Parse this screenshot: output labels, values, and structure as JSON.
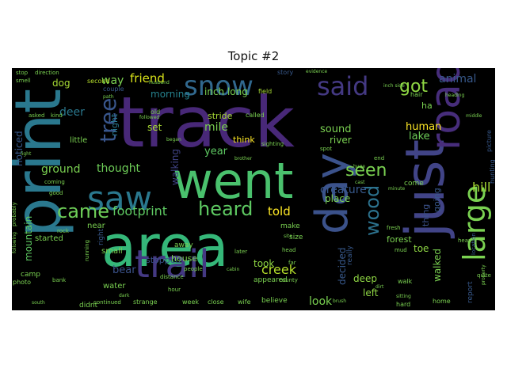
{
  "title": "Topic #2",
  "background": "#000000",
  "palette": [
    "#440154",
    "#3b528b",
    "#21918c",
    "#5ec962",
    "#fde725"
  ],
  "words": [
    {
      "text": "track",
      "color": "#482878"
    },
    {
      "text": "went",
      "color": "#4ac16d"
    },
    {
      "text": "area",
      "color": "#35b779"
    },
    {
      "text": "print",
      "color": "#2a788e"
    },
    {
      "text": "just",
      "color": "#414487"
    },
    {
      "text": "day",
      "color": "#3b528b"
    },
    {
      "text": "road",
      "color": "#472d7b"
    },
    {
      "text": "saw",
      "color": "#2a788e"
    },
    {
      "text": "trail",
      "color": "#443983"
    },
    {
      "text": "large",
      "color": "#7ad151"
    },
    {
      "text": "snow",
      "color": "#31688e"
    },
    {
      "text": "said",
      "color": "#443983"
    },
    {
      "text": "got",
      "color": "#8fd744"
    },
    {
      "text": "heard",
      "color": "#5ec962"
    },
    {
      "text": "came",
      "color": "#6ece58"
    },
    {
      "text": "seen",
      "color": "#7ad151"
    },
    {
      "text": "wood",
      "color": "#2c728e"
    },
    {
      "text": "tree",
      "color": "#39568c"
    },
    {
      "text": "footprint",
      "color": "#5ec962"
    },
    {
      "text": "creek",
      "color": "#b5de2b"
    },
    {
      "text": "friend",
      "color": "#d8e219"
    },
    {
      "text": "way",
      "color": "#7ad151"
    },
    {
      "text": "deer",
      "color": "#2a788e"
    },
    {
      "text": "mile",
      "color": "#7ad151"
    },
    {
      "text": "animal",
      "color": "#38598c"
    },
    {
      "text": "hill",
      "color": "#a8db34"
    },
    {
      "text": "told",
      "color": "#fde725"
    },
    {
      "text": "thought",
      "color": "#6ece58"
    },
    {
      "text": "ground",
      "color": "#7ad151"
    },
    {
      "text": "creature",
      "color": "#38598c"
    },
    {
      "text": "mountain",
      "color": "#5ec962"
    },
    {
      "text": "bear",
      "color": "#3b528b"
    },
    {
      "text": "look",
      "color": "#7ad151"
    },
    {
      "text": "human",
      "color": "#fde725"
    },
    {
      "text": "lake",
      "color": "#6ece58"
    },
    {
      "text": "sound",
      "color": "#7ad151"
    },
    {
      "text": "river",
      "color": "#7ad151"
    },
    {
      "text": "year",
      "color": "#5ec962"
    },
    {
      "text": "night",
      "color": "#2a788e"
    },
    {
      "text": "walking",
      "color": "#414487"
    },
    {
      "text": "going",
      "color": "#38598c"
    },
    {
      "text": "place",
      "color": "#7ad151"
    },
    {
      "text": "noticed",
      "color": "#38598c"
    },
    {
      "text": "morning",
      "color": "#26828e"
    },
    {
      "text": "inch long",
      "color": "#7ad151"
    },
    {
      "text": "set",
      "color": "#a8db34"
    },
    {
      "text": "dog",
      "color": "#a8db34"
    },
    {
      "text": "stopped",
      "color": "#3b528b"
    },
    {
      "text": "took",
      "color": "#8fd744"
    },
    {
      "text": "walked",
      "color": "#7ad151"
    },
    {
      "text": "thing",
      "color": "#3b528b"
    },
    {
      "text": "decided",
      "color": "#38598c"
    },
    {
      "text": "deep",
      "color": "#8fd744"
    },
    {
      "text": "left",
      "color": "#8fd744"
    },
    {
      "text": "toe",
      "color": "#8fd744"
    },
    {
      "text": "forest",
      "color": "#7ad151"
    },
    {
      "text": "house",
      "color": "#7ad151"
    },
    {
      "text": "think",
      "color": "#fde725"
    },
    {
      "text": "stride",
      "color": "#a8db34"
    },
    {
      "text": "ha",
      "color": "#7ad151"
    },
    {
      "text": "little",
      "color": "#7ad151"
    },
    {
      "text": "small",
      "color": "#7ad151"
    },
    {
      "text": "right",
      "color": "#38598c"
    },
    {
      "text": "near",
      "color": "#7ad151"
    },
    {
      "text": "started",
      "color": "#7ad151"
    },
    {
      "text": "water",
      "color": "#7ad151"
    },
    {
      "text": "didnt",
      "color": "#7ad151"
    },
    {
      "text": "come",
      "color": "#7ad151"
    },
    {
      "text": "size",
      "color": "#7ad151"
    },
    {
      "text": "make",
      "color": "#7ad151"
    },
    {
      "text": "appeared",
      "color": "#7ad151"
    },
    {
      "text": "believe",
      "color": "#7ad151"
    },
    {
      "text": "report",
      "color": "#38598c"
    },
    {
      "text": "really",
      "color": "#38598c"
    },
    {
      "text": "away",
      "color": "#7ad151"
    },
    {
      "text": "camp",
      "color": "#7ad151"
    },
    {
      "text": "photo",
      "color": "#7ad151"
    },
    {
      "text": "second",
      "color": "#b5de2b"
    },
    {
      "text": "couple",
      "color": "#38598c"
    },
    {
      "text": "old",
      "color": "#7ad151"
    },
    {
      "text": "called",
      "color": "#7ad151"
    },
    {
      "text": "field",
      "color": "#a8db34"
    },
    {
      "text": "story",
      "color": "#38598c"
    },
    {
      "text": "hair",
      "color": "#7ad151"
    },
    {
      "text": "hunting",
      "color": "#38598c"
    },
    {
      "text": "picture",
      "color": "#38598c"
    },
    {
      "text": "location",
      "color": "#38598c"
    },
    {
      "text": "rock",
      "color": "#7ad151"
    },
    {
      "text": "good",
      "color": "#7ad151"
    },
    {
      "text": "close",
      "color": "#7ad151"
    },
    {
      "text": "wife",
      "color": "#7ad151"
    },
    {
      "text": "week",
      "color": "#7ad151"
    },
    {
      "text": "strange",
      "color": "#7ad151"
    },
    {
      "text": "hour",
      "color": "#7ad151"
    },
    {
      "text": "walk",
      "color": "#7ad151"
    },
    {
      "text": "hard",
      "color": "#7ad151"
    },
    {
      "text": "home",
      "color": "#7ad151"
    },
    {
      "text": "head",
      "color": "#7ad151"
    },
    {
      "text": "far",
      "color": "#7ad151"
    },
    {
      "text": "later",
      "color": "#7ad151"
    },
    {
      "text": "people",
      "color": "#7ad151"
    },
    {
      "text": "running",
      "color": "#7ad151"
    },
    {
      "text": "coming",
      "color": "#7ad151"
    },
    {
      "text": "asked",
      "color": "#7ad151"
    },
    {
      "text": "kind",
      "color": "#7ad151"
    },
    {
      "text": "light",
      "color": "#7ad151"
    },
    {
      "text": "smell",
      "color": "#7ad151"
    },
    {
      "text": "stop",
      "color": "#7ad151"
    },
    {
      "text": "direction",
      "color": "#7ad151"
    },
    {
      "text": "continued",
      "color": "#7ad151"
    },
    {
      "text": "fresh",
      "color": "#7ad151"
    },
    {
      "text": "mud",
      "color": "#7ad151"
    },
    {
      "text": "hear",
      "color": "#7ad151"
    },
    {
      "text": "quite",
      "color": "#7ad151"
    },
    {
      "text": "sighting",
      "color": "#7ad151"
    },
    {
      "text": "spot",
      "color": "#7ad151"
    },
    {
      "text": "end",
      "color": "#7ad151"
    },
    {
      "text": "minute",
      "color": "#7ad151"
    },
    {
      "text": "site",
      "color": "#7ad151"
    },
    {
      "text": "probably",
      "color": "#7ad151"
    },
    {
      "text": "bank",
      "color": "#7ad151"
    },
    {
      "text": "county",
      "color": "#7ad151"
    },
    {
      "text": "evidence",
      "color": "#7ad151"
    },
    {
      "text": "distance",
      "color": "#7ad151"
    },
    {
      "text": "followed",
      "color": "#7ad151"
    },
    {
      "text": "began",
      "color": "#7ad151"
    },
    {
      "text": "cast",
      "color": "#7ad151"
    },
    {
      "text": "husband",
      "color": "#7ad151"
    },
    {
      "text": "path",
      "color": "#7ad151"
    },
    {
      "text": "middle",
      "color": "#7ad151"
    },
    {
      "text": "huge",
      "color": "#7ad151"
    },
    {
      "text": "inch side",
      "color": "#7ad151"
    },
    {
      "text": "brother",
      "color": "#7ad151"
    },
    {
      "text": "cabin",
      "color": "#7ad151"
    },
    {
      "text": "south",
      "color": "#7ad151"
    },
    {
      "text": "dark",
      "color": "#7ad151"
    },
    {
      "text": "following",
      "color": "#7ad151"
    },
    {
      "text": "sitting",
      "color": "#7ad151"
    },
    {
      "text": "property",
      "color": "#7ad151"
    },
    {
      "text": "heading",
      "color": "#7ad151"
    },
    {
      "text": "dirt",
      "color": "#7ad151"
    },
    {
      "text": "brush",
      "color": "#7ad151"
    }
  ]
}
